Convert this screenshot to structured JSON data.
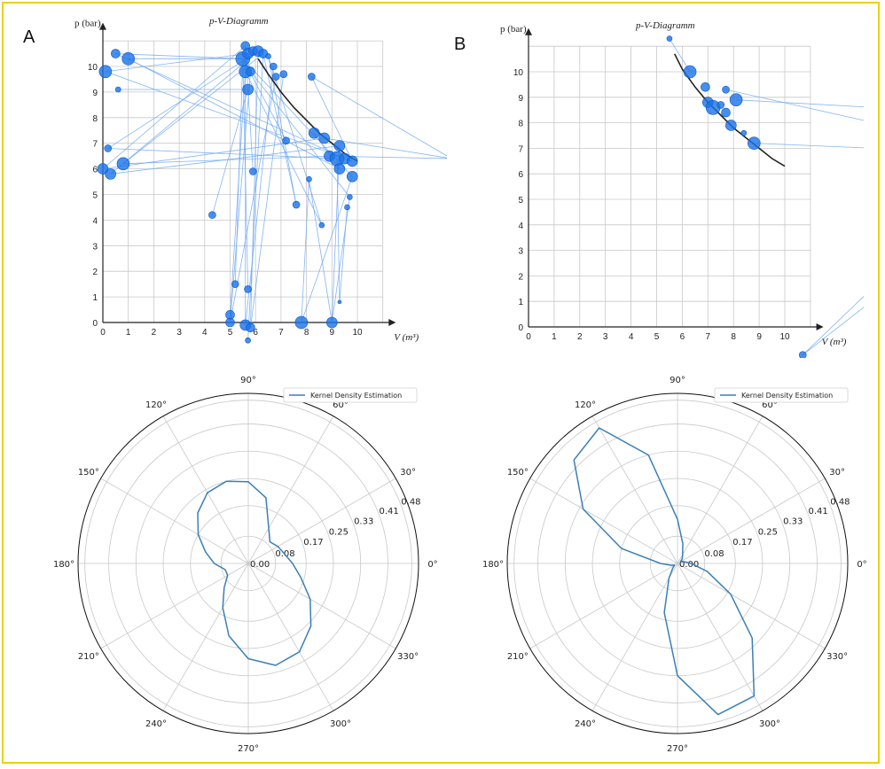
{
  "panels": [
    {
      "letter": "A",
      "title": "p-V-Diagramm"
    },
    {
      "letter": "B",
      "title": "p-V-Diagramm"
    }
  ],
  "colors": {
    "point": "#1a73e8",
    "link": "#6fa8f0",
    "curve": "#222222",
    "kde": "#3b7fb7",
    "grid": "#c8c8c8",
    "border": "#e8d400"
  },
  "chart_data": [
    {
      "type": "scatter",
      "title": "p-V-Diagramm",
      "xlabel": "V (m³)",
      "ylabel": "p (bar)",
      "xlim": [
        0,
        11
      ],
      "ylim": [
        -0.8,
        11
      ],
      "xticks": [
        0,
        1,
        2,
        3,
        4,
        5,
        6,
        7,
        8,
        9,
        10
      ],
      "yticks": [
        0,
        1,
        2,
        3,
        4,
        5,
        6,
        7,
        8,
        9,
        10
      ],
      "grid": true,
      "isotherm": {
        "x": [
          6.1,
          6.5,
          7.0,
          7.5,
          8.0,
          8.5,
          9.0,
          9.5,
          10.0
        ],
        "y": [
          10.3,
          9.7,
          9.0,
          8.4,
          7.9,
          7.4,
          7.0,
          6.6,
          6.3
        ]
      },
      "points": [
        {
          "x": 0.5,
          "y": 10.5,
          "s": 5
        },
        {
          "x": 1.0,
          "y": 10.3,
          "s": 7
        },
        {
          "x": 0.1,
          "y": 9.8,
          "s": 7
        },
        {
          "x": 0.6,
          "y": 9.1,
          "s": 3
        },
        {
          "x": 0.2,
          "y": 6.8,
          "s": 4
        },
        {
          "x": 0.0,
          "y": 6.0,
          "s": 6
        },
        {
          "x": 0.3,
          "y": 5.8,
          "s": 6
        },
        {
          "x": 0.8,
          "y": 6.2,
          "s": 7
        },
        {
          "x": 4.3,
          "y": 4.2,
          "s": 4
        },
        {
          "x": 5.2,
          "y": 1.5,
          "s": 4
        },
        {
          "x": 5.7,
          "y": 1.3,
          "s": 4
        },
        {
          "x": 5.0,
          "y": 0.3,
          "s": 5
        },
        {
          "x": 5.0,
          "y": 0.0,
          "s": 5
        },
        {
          "x": 5.6,
          "y": -0.1,
          "s": 6
        },
        {
          "x": 5.8,
          "y": -0.2,
          "s": 5
        },
        {
          "x": 5.7,
          "y": -0.7,
          "s": 3
        },
        {
          "x": 5.5,
          "y": 10.3,
          "s": 8
        },
        {
          "x": 5.6,
          "y": 10.8,
          "s": 5
        },
        {
          "x": 5.7,
          "y": 10.5,
          "s": 6
        },
        {
          "x": 5.9,
          "y": 10.6,
          "s": 5
        },
        {
          "x": 6.1,
          "y": 10.6,
          "s": 6
        },
        {
          "x": 6.3,
          "y": 10.5,
          "s": 5
        },
        {
          "x": 6.5,
          "y": 10.4,
          "s": 3
        },
        {
          "x": 5.6,
          "y": 9.8,
          "s": 7
        },
        {
          "x": 5.8,
          "y": 9.8,
          "s": 5
        },
        {
          "x": 5.7,
          "y": 9.1,
          "s": 6
        },
        {
          "x": 5.9,
          "y": 5.9,
          "s": 4
        },
        {
          "x": 6.7,
          "y": 10.0,
          "s": 4
        },
        {
          "x": 6.8,
          "y": 9.6,
          "s": 4
        },
        {
          "x": 7.1,
          "y": 9.7,
          "s": 4
        },
        {
          "x": 8.2,
          "y": 9.6,
          "s": 4
        },
        {
          "x": 7.2,
          "y": 7.1,
          "s": 4
        },
        {
          "x": 8.3,
          "y": 7.4,
          "s": 6
        },
        {
          "x": 8.7,
          "y": 7.2,
          "s": 6
        },
        {
          "x": 8.9,
          "y": 6.5,
          "s": 6
        },
        {
          "x": 9.3,
          "y": 6.9,
          "s": 6
        },
        {
          "x": 9.2,
          "y": 6.4,
          "s": 8
        },
        {
          "x": 9.5,
          "y": 6.4,
          "s": 6
        },
        {
          "x": 9.8,
          "y": 6.3,
          "s": 6
        },
        {
          "x": 9.3,
          "y": 6.0,
          "s": 6
        },
        {
          "x": 9.8,
          "y": 5.7,
          "s": 6
        },
        {
          "x": 8.1,
          "y": 5.6,
          "s": 3
        },
        {
          "x": 7.6,
          "y": 4.6,
          "s": 4
        },
        {
          "x": 8.6,
          "y": 3.8,
          "s": 3
        },
        {
          "x": 9.7,
          "y": 4.9,
          "s": 3
        },
        {
          "x": 9.6,
          "y": 4.5,
          "s": 3
        },
        {
          "x": 9.3,
          "y": 0.8,
          "s": 2
        },
        {
          "x": 7.8,
          "y": 0.0,
          "s": 7
        },
        {
          "x": 9.0,
          "y": 0.0,
          "s": 6
        },
        {
          "x": 13.7,
          "y": 6.4,
          "s": 4
        }
      ],
      "links": [
        [
          0,
          16
        ],
        [
          1,
          16
        ],
        [
          2,
          18
        ],
        [
          3,
          25
        ],
        [
          4,
          20
        ],
        [
          5,
          17
        ],
        [
          6,
          20
        ],
        [
          7,
          21
        ],
        [
          8,
          25
        ],
        [
          9,
          16
        ],
        [
          10,
          16
        ],
        [
          11,
          23
        ],
        [
          12,
          24
        ],
        [
          13,
          17
        ],
        [
          14,
          20
        ],
        [
          15,
          21
        ],
        [
          26,
          17
        ],
        [
          27,
          13
        ],
        [
          28,
          12
        ],
        [
          29,
          14
        ],
        [
          30,
          38
        ],
        [
          31,
          16
        ],
        [
          32,
          39
        ],
        [
          33,
          5
        ],
        [
          34,
          7
        ],
        [
          35,
          6
        ],
        [
          36,
          4
        ],
        [
          37,
          0
        ],
        [
          38,
          2
        ],
        [
          39,
          1
        ],
        [
          40,
          47
        ],
        [
          41,
          48
        ],
        [
          42,
          21
        ],
        [
          43,
          22
        ],
        [
          44,
          48
        ],
        [
          45,
          46
        ],
        [
          46,
          36
        ],
        [
          47,
          41
        ],
        [
          48,
          35
        ],
        [
          49,
          33
        ],
        [
          49,
          34
        ],
        [
          30,
          49
        ],
        [
          16,
          40
        ],
        [
          22,
          42
        ],
        [
          23,
          43
        ],
        [
          24,
          44
        ]
      ]
    },
    {
      "type": "scatter",
      "title": "p-V-Diagramm",
      "xlabel": "V (m³)",
      "ylabel": "p (bar)",
      "xlim": [
        0,
        11
      ],
      "ylim": [
        -0.8,
        11
      ],
      "xticks": [
        0,
        1,
        2,
        3,
        4,
        5,
        6,
        7,
        8,
        9,
        10
      ],
      "yticks": [
        0,
        1,
        2,
        3,
        4,
        5,
        6,
        7,
        8,
        9,
        10
      ],
      "grid": true,
      "isotherm": {
        "x": [
          5.7,
          6.0,
          6.5,
          7.0,
          7.5,
          8.0,
          8.5,
          9.0,
          9.5,
          10.0
        ],
        "y": [
          10.7,
          10.1,
          9.4,
          8.8,
          8.3,
          7.8,
          7.4,
          7.0,
          6.6,
          6.3
        ]
      },
      "points": [
        {
          "x": 5.5,
          "y": 11.3,
          "s": 3
        },
        {
          "x": 6.3,
          "y": 10.0,
          "s": 7
        },
        {
          "x": 6.9,
          "y": 9.4,
          "s": 5
        },
        {
          "x": 7.7,
          "y": 9.3,
          "s": 4
        },
        {
          "x": 7.0,
          "y": 8.8,
          "s": 6
        },
        {
          "x": 7.2,
          "y": 8.6,
          "s": 8
        },
        {
          "x": 7.5,
          "y": 8.7,
          "s": 4
        },
        {
          "x": 7.7,
          "y": 8.4,
          "s": 5
        },
        {
          "x": 8.1,
          "y": 8.9,
          "s": 7
        },
        {
          "x": 7.9,
          "y": 7.9,
          "s": 6
        },
        {
          "x": 8.4,
          "y": 7.6,
          "s": 3
        },
        {
          "x": 8.8,
          "y": 7.2,
          "s": 7
        },
        {
          "x": 10.7,
          "y": -1.1,
          "s": 4
        }
      ],
      "links": [
        [
          0,
          1
        ],
        [
          8,
          13
        ],
        [
          11,
          14
        ],
        [
          3,
          15
        ],
        [
          12,
          16
        ],
        [
          12,
          17
        ]
      ],
      "offscreen": [
        {
          "x": 13.5,
          "y": 8.6
        },
        {
          "x": 13.5,
          "y": 7.0
        },
        {
          "x": 13.5,
          "y": 8.0
        },
        {
          "x": 13.5,
          "y": 1.6
        },
        {
          "x": 13.5,
          "y": 1.1
        }
      ]
    },
    {
      "type": "polar-line",
      "legend": "Kernel Density Estimation",
      "legend_position": "top-right",
      "rticks": [
        0.0,
        0.08,
        0.17,
        0.25,
        0.33,
        0.41,
        0.48
      ],
      "rmax": 0.5,
      "theta_labels": [
        "0°",
        "30°",
        "60°",
        "90°",
        "120°",
        "150°",
        "180°",
        "210°",
        "240°",
        "270°",
        "300°",
        "330°"
      ],
      "theta_deg": [
        0,
        15,
        30,
        45,
        60,
        75,
        90,
        105,
        120,
        135,
        150,
        165,
        180,
        195,
        210,
        225,
        240,
        255,
        270,
        285,
        300,
        315,
        330,
        345,
        360
      ],
      "r": [
        0.13,
        0.11,
        0.1,
        0.09,
        0.12,
        0.2,
        0.24,
        0.25,
        0.24,
        0.21,
        0.17,
        0.13,
        0.1,
        0.07,
        0.07,
        0.1,
        0.15,
        0.22,
        0.28,
        0.31,
        0.3,
        0.26,
        0.21,
        0.16,
        0.13
      ]
    },
    {
      "type": "polar-line",
      "legend": "Kernel Density Estimation",
      "legend_position": "top-right",
      "rticks": [
        0.0,
        0.08,
        0.17,
        0.25,
        0.33,
        0.41,
        0.48
      ],
      "rmax": 0.5,
      "theta_labels": [
        "0°",
        "30°",
        "60°",
        "90°",
        "120°",
        "150°",
        "180°",
        "210°",
        "240°",
        "270°",
        "300°",
        "330°"
      ],
      "theta_deg": [
        0,
        15,
        30,
        45,
        60,
        75,
        90,
        105,
        120,
        135,
        150,
        165,
        180,
        195,
        210,
        225,
        240,
        255,
        270,
        285,
        300,
        315,
        330,
        345,
        360
      ],
      "r": [
        0.04,
        0.02,
        0.01,
        0.02,
        0.03,
        0.06,
        0.13,
        0.33,
        0.46,
        0.43,
        0.32,
        0.17,
        0.05,
        0.02,
        0.01,
        0.02,
        0.05,
        0.15,
        0.33,
        0.46,
        0.45,
        0.31,
        0.18,
        0.09,
        0.04
      ]
    }
  ]
}
